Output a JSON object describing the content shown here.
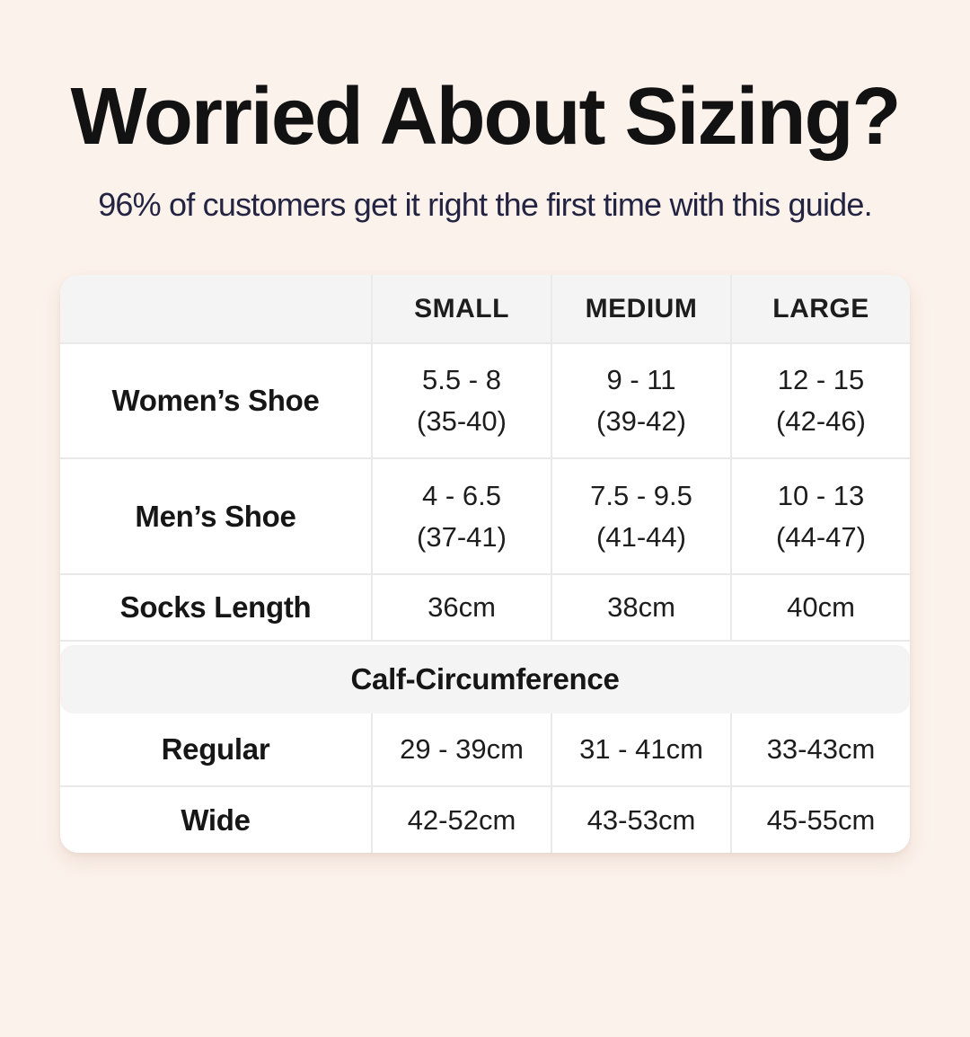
{
  "page": {
    "background_color": "#fcf2ec",
    "accent_colors": {
      "title_text": "#121212",
      "subtitle_text": "#232342",
      "card_background": "#ffffff",
      "header_band_background": "#f4f4f4",
      "divider": "#e9e9e9",
      "table_text": "#1d1d1d"
    }
  },
  "header": {
    "title": "Worried About Sizing?",
    "subtitle": "96% of customers get it right the first time with this guide."
  },
  "table": {
    "headers": [
      "",
      "SMALL",
      "MEDIUM",
      "LARGE"
    ],
    "shoe_rows": [
      {
        "label": "Women’s Shoe",
        "cells": [
          {
            "line1": "5.5 - 8",
            "line2": "(35-40)"
          },
          {
            "line1": "9 - 11",
            "line2": "(39-42)"
          },
          {
            "line1": "12 - 15",
            "line2": "(42-46)"
          }
        ]
      },
      {
        "label": "Men’s Shoe",
        "cells": [
          {
            "line1": "4 - 6.5",
            "line2": "(37-41)"
          },
          {
            "line1": "7.5 - 9.5",
            "line2": "(41-44)"
          },
          {
            "line1": "10 - 13",
            "line2": "(44-47)"
          }
        ]
      }
    ],
    "socks_row": {
      "label": "Socks Length",
      "cells": [
        "36cm",
        "38cm",
        "40cm"
      ]
    },
    "calf_section": {
      "header": "Calf-Circumference",
      "rows": [
        {
          "label": "Regular",
          "cells": [
            "29 - 39cm",
            "31 - 41cm",
            "33-43cm"
          ]
        },
        {
          "label": "Wide",
          "cells": [
            "42-52cm",
            "43-53cm",
            "45-55cm"
          ]
        }
      ]
    }
  }
}
